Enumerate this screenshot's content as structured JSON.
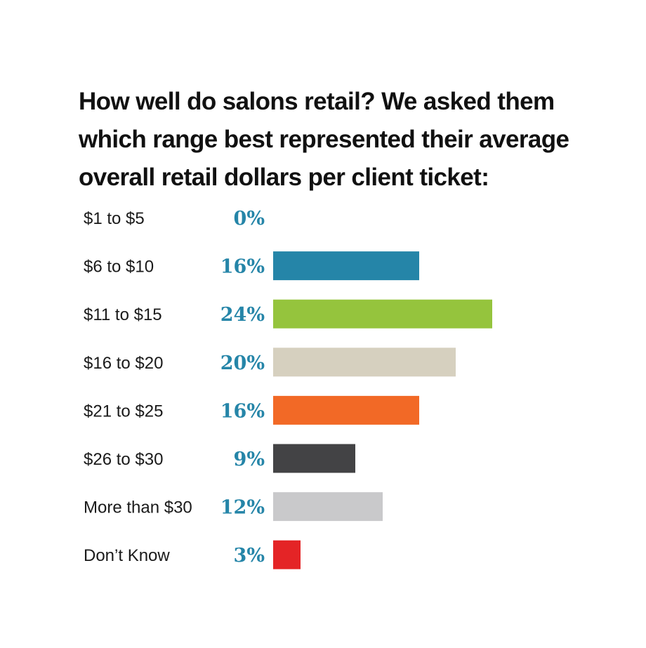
{
  "chart_data": {
    "type": "bar",
    "orientation": "horizontal",
    "title": "How well do salons retail? We asked them which range best represented their average overall retail dollars per client ticket:",
    "categories": [
      "$1 to $5",
      "$6 to $10",
      "$11 to $15",
      "$16 to $20",
      "$21 to $25",
      "$26 to $30",
      "More than $30",
      "Don’t Know"
    ],
    "values": [
      0,
      16,
      24,
      20,
      16,
      9,
      12,
      3
    ],
    "value_labels": [
      "0%",
      "16%",
      "24%",
      "20%",
      "16%",
      "9%",
      "12%",
      "3%"
    ],
    "unit": "%",
    "xlim": [
      0,
      24
    ],
    "colors": [
      "#2585a8",
      "#2585a8",
      "#95c43d",
      "#d6d0bf",
      "#f26926",
      "#434345",
      "#c9c9cb",
      "#e42426"
    ],
    "label_color": "#2585a8",
    "grid": false,
    "legend": "none"
  }
}
